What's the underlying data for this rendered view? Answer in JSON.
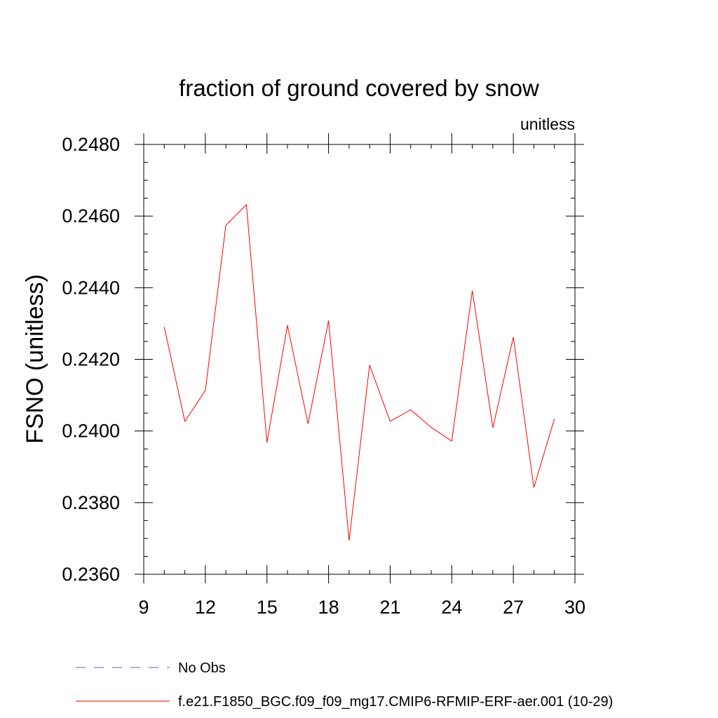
{
  "chart_data": {
    "type": "line",
    "title": "fraction of ground covered by snow",
    "subtitle": "unitless",
    "ylabel": "FSNO  (unitless)",
    "xlabel": "",
    "xlim": [
      9,
      30
    ],
    "ylim": [
      0.236,
      0.248
    ],
    "xticks": [
      9,
      12,
      15,
      18,
      21,
      24,
      27,
      30
    ],
    "xtick_labels": [
      "9",
      "12",
      "15",
      "18",
      "21",
      "24",
      "27",
      "30"
    ],
    "yticks": [
      0.236,
      0.238,
      0.24,
      0.242,
      0.244,
      0.246,
      0.248
    ],
    "ytick_labels": [
      "0.2360",
      "0.2380",
      "0.2400",
      "0.2420",
      "0.2440",
      "0.2460",
      "0.2480"
    ],
    "grid": false,
    "legend_position": "bottom",
    "series": [
      {
        "name": "f.e21.F1850_BGC.f09_f09_mg17.CMIP6-RFMIP-ERF-aer.001 (10-29)",
        "color": "#ff0000",
        "style": "solid",
        "x": [
          10,
          11,
          12,
          13,
          14,
          15,
          16,
          17,
          18,
          19,
          20,
          21,
          22,
          23,
          24,
          25,
          26,
          27,
          28,
          29
        ],
        "y": [
          0.2429,
          0.24027,
          0.24113,
          0.24574,
          0.24632,
          0.23968,
          0.24295,
          0.2402,
          0.24308,
          0.23694,
          0.24184,
          0.24027,
          0.24059,
          0.2401,
          0.23972,
          0.24392,
          0.24009,
          0.24262,
          0.23842,
          0.24034
        ]
      }
    ],
    "legend": [
      {
        "label": "No Obs",
        "color": "#6a5acd",
        "style": "dashed"
      },
      {
        "label": "f.e21.F1850_BGC.f09_f09_mg17.CMIP6-RFMIP-ERF-aer.001 (10-29)",
        "color": "#ff0000",
        "style": "solid"
      }
    ]
  }
}
